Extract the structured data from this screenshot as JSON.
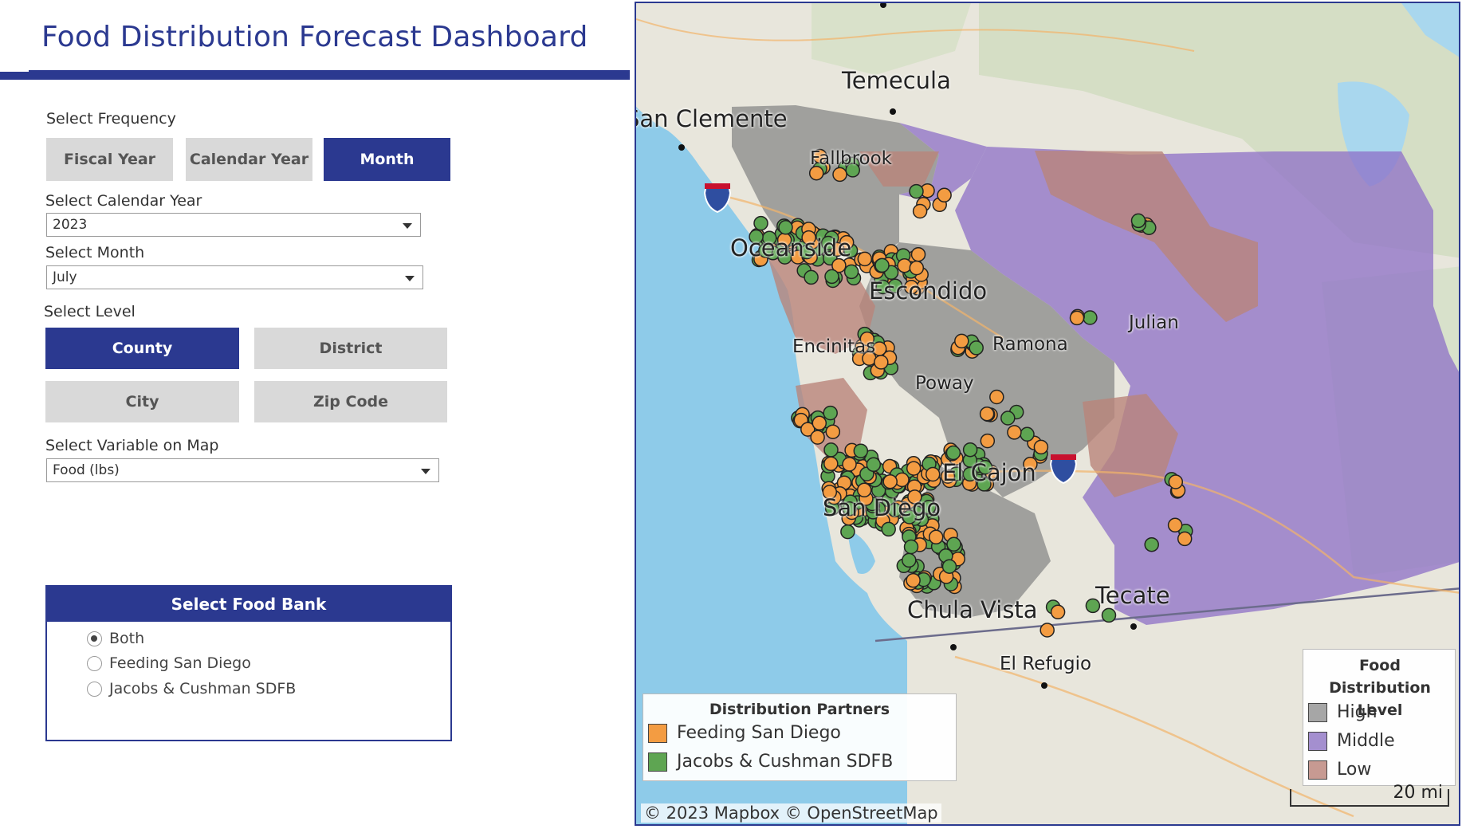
{
  "header": {
    "title": "Food Distribution Forecast Dashboard"
  },
  "frequency": {
    "label": "Select Frequency",
    "options": [
      "Fiscal Year",
      "Calendar Year",
      "Month"
    ],
    "selected": "Month"
  },
  "calendar_year": {
    "label": "Select Calendar Year",
    "value": "2023"
  },
  "month": {
    "label": "Select Month",
    "value": "July"
  },
  "level": {
    "label": "Select Level",
    "options": [
      "County",
      "District",
      "City",
      "Zip Code"
    ],
    "selected": "County"
  },
  "map_variable": {
    "label": "Select Variable on Map",
    "value": "Food (lbs)"
  },
  "food_bank": {
    "title": "Select Food Bank",
    "options": [
      "Both",
      "Feeding San Diego",
      "Jacobs & Cushman SDFB"
    ],
    "selected": "Both"
  },
  "map": {
    "places": [
      "Temecula",
      "San Clemente",
      "Fallbrook",
      "Oceanside",
      "Escondido",
      "Encinitas",
      "Ramona",
      "Julian",
      "Poway",
      "El Cajon",
      "San Diego",
      "Chula Vista",
      "Tecate",
      "El Refugio"
    ],
    "highway_shields": [
      "5",
      "8"
    ],
    "attribution": "© 2023 Mapbox  © OpenStreetMap",
    "scale_label": "20 mi",
    "partners_legend": {
      "title": "Distribution Partners",
      "items": [
        {
          "label": "Feeding San Diego",
          "color": "#f39c42"
        },
        {
          "label": "Jacobs & Cushman SDFB",
          "color": "#5ea552"
        }
      ]
    },
    "level_legend": {
      "title": "Food Distribution Level",
      "items": [
        {
          "label": "High",
          "color": "#a6a6a6"
        },
        {
          "label": "Middle",
          "color": "#a48fcf"
        },
        {
          "label": "Low",
          "color": "#c79a92"
        }
      ]
    },
    "colors": {
      "ocean": "#8ecbe9",
      "land": "#e9e7df",
      "high": "#8c8c8c",
      "middle": "#8d6fc7",
      "low": "#b9857a"
    }
  }
}
